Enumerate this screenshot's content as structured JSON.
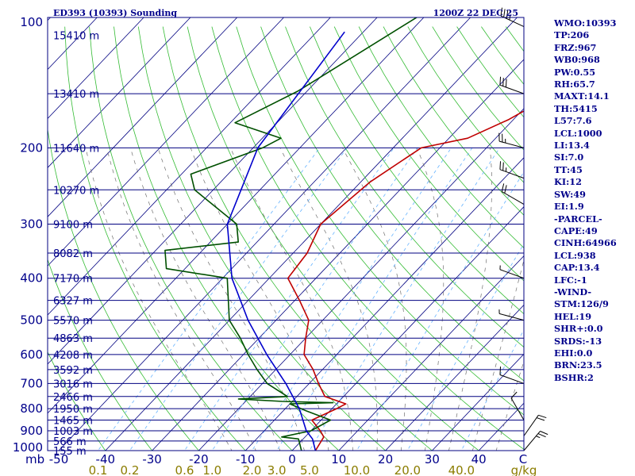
{
  "chart_data": {
    "type": "skew-t log-p",
    "title": {
      "station": "ED393 (10393) Sounding",
      "time": "1200Z 22 DEC 25"
    },
    "pressure_axis": {
      "unit": "mb",
      "levels": [
        100,
        200,
        300,
        400,
        500,
        600,
        700,
        800,
        900,
        1000
      ],
      "range": [
        100,
        1000
      ]
    },
    "temperature_axis": {
      "unit": "C",
      "ticks": [
        "-50",
        "-40",
        "-30",
        "-20",
        "-10",
        "0",
        "10",
        "20",
        "30",
        "40"
      ],
      "range": [
        -50,
        50
      ]
    },
    "mixing_ratio_axis": {
      "unit": "g/kg",
      "ticks": [
        "0.1",
        "0.2",
        "0.6",
        "1.0",
        "2.0",
        "3.0",
        "5.0",
        "10.0",
        "20.0",
        "40.0"
      ]
    },
    "heights": [
      {
        "p": 110,
        "label": "15410 m"
      },
      {
        "p": 150,
        "label": "13410 m"
      },
      {
        "p": 200,
        "label": "11640 m"
      },
      {
        "p": 250,
        "label": "10270 m"
      },
      {
        "p": 300,
        "label": "9100 m"
      },
      {
        "p": 350,
        "label": "8082 m"
      },
      {
        "p": 400,
        "label": "7170 m"
      },
      {
        "p": 450,
        "label": "6327 m"
      },
      {
        "p": 500,
        "label": "5570 m"
      },
      {
        "p": 550,
        "label": "4863 m"
      },
      {
        "p": 600,
        "label": "4208 m"
      },
      {
        "p": 650,
        "label": "3592 m"
      },
      {
        "p": 700,
        "label": "3016 m"
      },
      {
        "p": 750,
        "label": "2466 m"
      },
      {
        "p": 800,
        "label": "1950 m"
      },
      {
        "p": 850,
        "label": "1465 m"
      },
      {
        "p": 900,
        "label": "1003 m"
      },
      {
        "p": 950,
        "label": "566 m"
      },
      {
        "p": 1000,
        "label": "155 m"
      }
    ],
    "series": [
      {
        "name": "temperature",
        "color": "#c00000",
        "points": [
          [
            98,
            -8
          ],
          [
            148,
            -16
          ],
          [
            172,
            -21
          ],
          [
            190,
            -26
          ],
          [
            200,
            -34
          ],
          [
            240,
            -38
          ],
          [
            300,
            -40
          ],
          [
            350,
            -37
          ],
          [
            400,
            -36
          ],
          [
            450,
            -29
          ],
          [
            500,
            -23
          ],
          [
            550,
            -20
          ],
          [
            600,
            -17
          ],
          [
            650,
            -12
          ],
          [
            700,
            -8
          ],
          [
            750,
            -4
          ],
          [
            780,
            2
          ],
          [
            800,
            1
          ],
          [
            850,
            -2
          ],
          [
            900,
            2
          ],
          [
            930,
            4
          ],
          [
            1000,
            5
          ]
        ]
      },
      {
        "name": "dewpoint",
        "color": "#005000",
        "points": [
          [
            98,
            -61
          ],
          [
            148,
            -72
          ],
          [
            175,
            -79
          ],
          [
            190,
            -66
          ],
          [
            200,
            -68
          ],
          [
            230,
            -78
          ],
          [
            250,
            -74
          ],
          [
            300,
            -58
          ],
          [
            330,
            -54
          ],
          [
            345,
            -68
          ],
          [
            380,
            -64
          ],
          [
            400,
            -49
          ],
          [
            500,
            -40
          ],
          [
            550,
            -34
          ],
          [
            600,
            -29
          ],
          [
            650,
            -24
          ],
          [
            700,
            -19
          ],
          [
            750,
            -12
          ],
          [
            760,
            -22
          ],
          [
            770,
            -12
          ],
          [
            775,
            -1
          ],
          [
            780,
            -10
          ],
          [
            810,
            -5
          ],
          [
            850,
            2
          ],
          [
            900,
            0
          ],
          [
            930,
            -5
          ],
          [
            940,
            -1
          ],
          [
            1000,
            2
          ]
        ]
      },
      {
        "name": "parcel",
        "color": "#0000cc",
        "points": [
          [
            108,
            -74
          ],
          [
            200,
            -69
          ],
          [
            300,
            -60
          ],
          [
            400,
            -48
          ],
          [
            500,
            -36
          ],
          [
            600,
            -25
          ],
          [
            700,
            -15
          ],
          [
            800,
            -7
          ],
          [
            900,
            -1
          ],
          [
            940,
            2
          ],
          [
            1000,
            5
          ]
        ]
      }
    ],
    "wind_barbs": [
      {
        "p": 105,
        "dir_deg": 295,
        "speed_kt": 35
      },
      {
        "p": 150,
        "dir_deg": 290,
        "speed_kt": 30
      },
      {
        "p": 200,
        "dir_deg": 285,
        "speed_kt": 25
      },
      {
        "p": 235,
        "dir_deg": 290,
        "speed_kt": 25
      },
      {
        "p": 270,
        "dir_deg": 300,
        "speed_kt": 20
      },
      {
        "p": 400,
        "dir_deg": 290,
        "speed_kt": 5
      },
      {
        "p": 500,
        "dir_deg": 285,
        "speed_kt": 5
      },
      {
        "p": 700,
        "dir_deg": 290,
        "speed_kt": 10
      },
      {
        "p": 850,
        "dir_deg": 330,
        "speed_kt": 10
      },
      {
        "p": 925,
        "dir_deg": 35,
        "speed_kt": 20
      },
      {
        "p": 1000,
        "dir_deg": 40,
        "speed_kt": 25
      }
    ],
    "indices": [
      "WMO:10393",
      "TP:206",
      "FRZ:967",
      "WB0:968",
      "PW:0.55",
      "RH:65.7",
      "MAXT:14.1",
      "TH:5415",
      "L57:7.6",
      "LCL:1000",
      "LI:13.4",
      "SI:7.0",
      "TT:45",
      "KI:12",
      "SW:49",
      "EI:1.9",
      "-PARCEL-",
      "CAPE:49",
      "CINH:64966",
      "LCL:938",
      "CAP:13.4",
      "LFC:-1",
      "-WIND-",
      "STM:126/9",
      "HEL:19",
      "SHR+:0.0",
      "SRDS:-13",
      "EHI:0.0",
      "BRN:23.5",
      "BSHR:2"
    ]
  },
  "colors": {
    "isobar": "#000080",
    "isotherm": "#000080",
    "dry_adiabat": "#33bb33",
    "moist_adiabat": "#707070",
    "mixing_ratio": "#66b3ff",
    "label": "#00008b",
    "mr_label": "#8b7d00"
  }
}
